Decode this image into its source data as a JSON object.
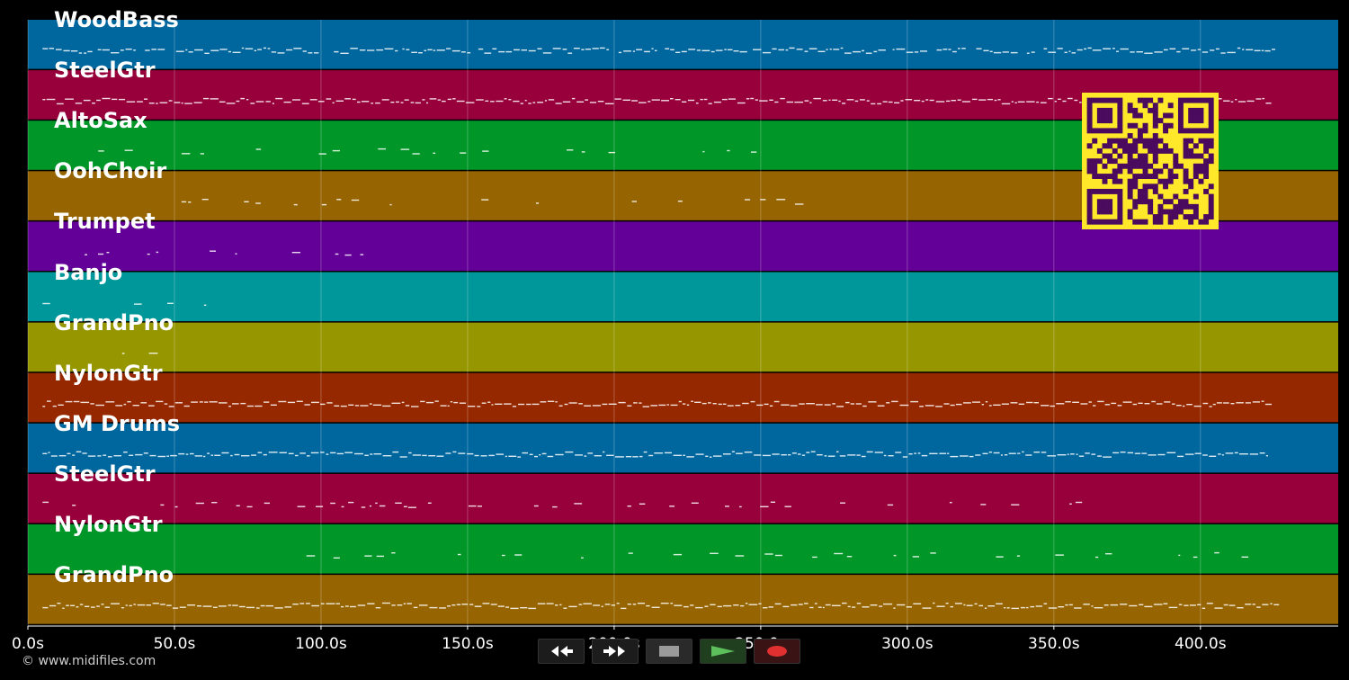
{
  "window": {
    "background": "#000000"
  },
  "tracks": [
    {
      "label": "WoodBass",
      "color": "#00679e",
      "density": 0.9,
      "range": [
        5,
        425
      ]
    },
    {
      "label": "SteelGtr",
      "color": "#97003a",
      "density": 1.0,
      "range": [
        5,
        423
      ]
    },
    {
      "label": "AltoSax",
      "color": "#009728",
      "density": 0.3,
      "range": [
        24,
        262
      ]
    },
    {
      "label": "OohChoir",
      "color": "#966400",
      "density": 0.3,
      "range": [
        24,
        262
      ]
    },
    {
      "label": "Trumpet",
      "color": "#630097",
      "density": 0.2,
      "range": [
        5,
        135
      ]
    },
    {
      "label": "Banjo",
      "color": "#00979a",
      "density": 0.2,
      "range": [
        5,
        70
      ]
    },
    {
      "label": "GrandPno",
      "color": "#969700",
      "density": 0.2,
      "range": [
        5,
        70
      ]
    },
    {
      "label": "NylonGtr",
      "color": "#962800",
      "density": 1.0,
      "range": [
        5,
        423
      ]
    },
    {
      "label": "GM Drums",
      "color": "#00679e",
      "density": 1.0,
      "range": [
        5,
        423
      ]
    },
    {
      "label": "SteelGtr",
      "color": "#97003a",
      "density": 0.4,
      "range": [
        5,
        365
      ]
    },
    {
      "label": "NylonGtr",
      "color": "#009728",
      "density": 0.3,
      "range": [
        95,
        423
      ]
    },
    {
      "label": "GrandPno",
      "color": "#966400",
      "density": 1.0,
      "range": [
        5,
        425
      ]
    }
  ],
  "timeline": {
    "unit": "s",
    "ticks": [
      "0.0s",
      "50.0s",
      "100.0s",
      "150.0s",
      "200.0s",
      "250.0s",
      "300.0s",
      "350.0s",
      "400.0s"
    ],
    "tick_values": [
      0,
      50,
      100,
      150,
      200,
      250,
      300,
      350,
      400
    ],
    "max_seconds": 447
  },
  "copyright": "© www.midifiles.com",
  "transport": {
    "buttons": [
      {
        "name": "rewind-button",
        "icon": "rewind-icon"
      },
      {
        "name": "fast-forward-button",
        "icon": "fast-forward-icon"
      },
      {
        "name": "stop-button",
        "icon": "stop-icon"
      },
      {
        "name": "play-button",
        "icon": "play-icon",
        "color": "#5cbf5c"
      },
      {
        "name": "record-button",
        "icon": "record-icon",
        "color": "#e03030"
      }
    ]
  },
  "qr": {
    "fg": "#4a0a5e",
    "bg": "#ffe82a"
  }
}
